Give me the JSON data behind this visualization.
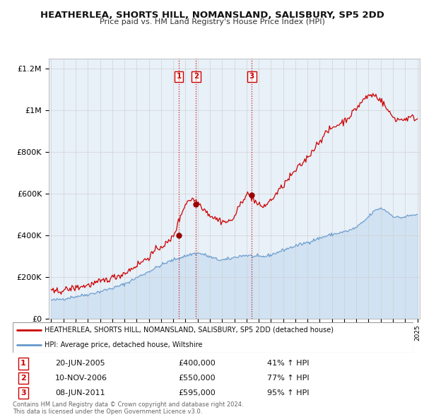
{
  "title": "HEATHERLEA, SHORTS HILL, NOMANSLAND, SALISBURY, SP5 2DD",
  "subtitle": "Price paid vs. HM Land Registry's House Price Index (HPI)",
  "property_color": "#cc0000",
  "hpi_color": "#6699cc",
  "hpi_fill_color": "#ddeeff",
  "ylim": [
    0,
    1250000
  ],
  "yticks": [
    0,
    200000,
    400000,
    600000,
    800000,
    1000000,
    1200000
  ],
  "ytick_labels": [
    "£0",
    "£200K",
    "£400K",
    "£600K",
    "£800K",
    "£1M",
    "£1.2M"
  ],
  "xlim_start": 1995,
  "xlim_end": 2025,
  "sale_vlines": [
    2005.47,
    2006.86,
    2011.44
  ],
  "sale_labels": [
    "1",
    "2",
    "3"
  ],
  "sale_prices": [
    400000,
    550000,
    595000
  ],
  "legend_property": "HEATHERLEA, SHORTS HILL, NOMANSLAND, SALISBURY, SP5 2DD (detached house)",
  "legend_hpi": "HPI: Average price, detached house, Wiltshire",
  "table_rows": [
    {
      "num": "1",
      "date": "20-JUN-2005",
      "price": "£400,000",
      "hpi": "41% ↑ HPI"
    },
    {
      "num": "2",
      "date": "10-NOV-2006",
      "price": "£550,000",
      "hpi": "77% ↑ HPI"
    },
    {
      "num": "3",
      "date": "08-JUN-2011",
      "price": "£595,000",
      "hpi": "95% ↑ HPI"
    }
  ],
  "footer": "Contains HM Land Registry data © Crown copyright and database right 2024.\nThis data is licensed under the Open Government Licence v3.0.",
  "background_color": "#ffffff",
  "chart_bg_color": "#e8f0f8",
  "grid_color": "#cccccc"
}
